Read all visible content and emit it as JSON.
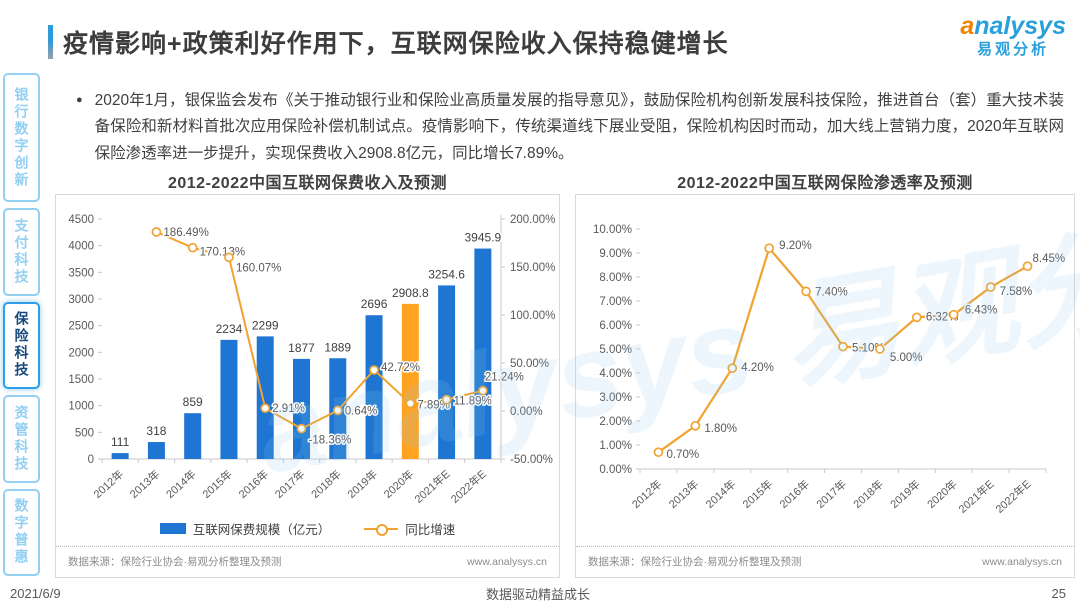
{
  "page": {
    "title": "疫情影响+政策利好作用下，互联网保险收入保持稳健增长",
    "logo": {
      "brand_first": "a",
      "brand_rest": "nalysys",
      "brand_cn": "易观分析"
    },
    "bullet_marker": "●",
    "bullet_text": "2020年1月，银保监会发布《关于推动银行业和保险业高质量发展的指导意见》，鼓励保险机构创新发展科技保险，推进首台（套）重大技术装备保险和新材料首批次应用保险补偿机制试点。疫情影响下，传统渠道线下展业受阻，保险机构因时而动，加大线上营销力度，2020年互联网保险渗透率进一步提升，实现保费收入2908.8亿元，同比增长7.89%。",
    "watermark": "analysys 易观分析",
    "footer": {
      "date": "2021/6/9",
      "slogan": "数据驱动精益成长",
      "page_number": "25"
    }
  },
  "sidebar": {
    "items": [
      {
        "label": "银行数字创新",
        "active": false
      },
      {
        "label": "支付科技",
        "active": false
      },
      {
        "label": "保险科技",
        "active": true
      },
      {
        "label": "资管科技",
        "active": false
      },
      {
        "label": "数字普惠",
        "active": false
      }
    ]
  },
  "colors": {
    "bar_blue": "#1e76d2",
    "highlight_orange": "#ffa321",
    "line_orange": "#f0a330",
    "sidebar_blue": "#93cff1",
    "sidebar_active_text": "#14497e",
    "logo_blue": "#29a0db",
    "logo_orange": "#f08300"
  },
  "chart_data": [
    {
      "type": "bar",
      "title": "2012-2022中国互联网保费收入及预测",
      "categories": [
        "2012年",
        "2013年",
        "2014年",
        "2015年",
        "2016年",
        "2017年",
        "2018年",
        "2019年",
        "2020年",
        "2021年E",
        "2022年E"
      ],
      "series": [
        {
          "name": "互联网保费规模（亿元）",
          "type": "bar",
          "values": [
            111,
            318,
            859,
            2234,
            2299,
            1877,
            1889,
            2696,
            2908.8,
            3254.6,
            3945.9
          ],
          "labels": [
            "111",
            "318",
            "859",
            "2234",
            "2299",
            "1877",
            "1889",
            "2696",
            "2908.8",
            "3254.6",
            "3945.9"
          ],
          "color": "#1e76d2",
          "highlight_index": 8,
          "highlight_color": "#ffa321"
        },
        {
          "name": "同比增速",
          "type": "line",
          "values": [
            null,
            186.49,
            170.13,
            160.07,
            2.91,
            -18.36,
            0.64,
            42.72,
            7.89,
            11.89,
            21.24
          ],
          "labels": [
            null,
            "186.49%",
            "170.13%",
            "160.07%",
            "2.91%",
            "-18.36%",
            "0.64%",
            "42.72%",
            "7.89%",
            "11.89%",
            "21.24%"
          ],
          "color": "#f0a330"
        }
      ],
      "y_left": {
        "min": 0,
        "max": 4500,
        "step": 500
      },
      "y_right": {
        "min": -50,
        "max": 200,
        "step": 50,
        "format": "percent"
      },
      "legend_position": "bottom",
      "grid": false,
      "source": "数据来源：保险行业协会·易观分析整理及预测",
      "website": "www.analysys.cn"
    },
    {
      "type": "line",
      "title": "2012-2022中国互联网保险渗透率及预测",
      "categories": [
        "2012年",
        "2013年",
        "2014年",
        "2015年",
        "2016年",
        "2017年",
        "2018年",
        "2019年",
        "2020年",
        "2021年E",
        "2022年E"
      ],
      "series": [
        {
          "type": "line",
          "values": [
            0.7,
            1.8,
            4.2,
            9.2,
            7.4,
            5.1,
            5.0,
            6.32,
            6.43,
            7.58,
            8.45
          ],
          "labels": [
            "0.70%",
            "1.80%",
            "4.20%",
            "9.20%",
            "7.40%",
            "5.10%",
            "5.00%",
            "6.32%",
            "6.43%",
            "7.58%",
            "8.45%"
          ],
          "color": "#f0a330"
        }
      ],
      "y_left": {
        "min": 0,
        "max": 10,
        "step": 1,
        "format": "percent2"
      },
      "grid": false,
      "source": "数据来源：保险行业协会·易观分析整理及预测",
      "website": "www.analysys.cn"
    }
  ]
}
